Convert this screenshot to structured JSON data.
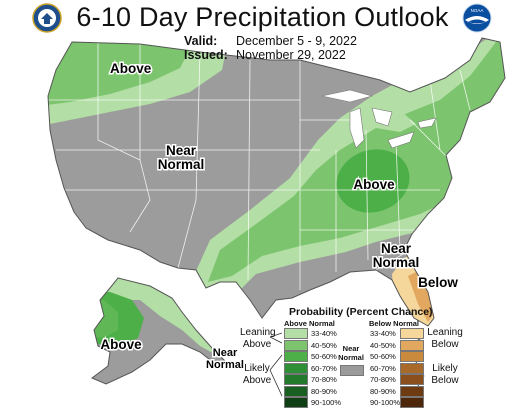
{
  "header": {
    "title": "6-10 Day Precipitation Outlook",
    "valid_label": "Valid:",
    "valid_value": "December 5 - 9, 2022",
    "issued_label": "Issued:",
    "issued_value": "November 29, 2022"
  },
  "logos": [
    {
      "name": "commerce-seal-icon"
    },
    {
      "name": "noaa-logo-icon",
      "text": "NOAA"
    }
  ],
  "map_labels": {
    "above_nw": "Above",
    "near_normal_w_1": "Near",
    "near_normal_w_2": "Normal",
    "above_ohio": "Above",
    "near_normal_se_1": "Near",
    "near_normal_se_2": "Normal",
    "below_fl": "Below",
    "above_ak": "Above",
    "near_normal_ak_1": "Near",
    "near_normal_ak_2": "Normal"
  },
  "legend": {
    "title": "Probability (Percent Chance)",
    "above_header": "Above Normal",
    "below_header": "Below Normal",
    "near_header_1": "Near",
    "near_header_2": "Normal",
    "leaning_above_1": "Leaning",
    "leaning_above_2": "Above",
    "likely_above_1": "Likely",
    "likely_above_2": "Above",
    "leaning_below_1": "Leaning",
    "leaning_below_2": "Below",
    "likely_below_1": "Likely",
    "likely_below_2": "Below",
    "above_ranges": [
      "33-40%",
      "40-50%",
      "50-60%",
      "60-70%",
      "70-80%",
      "80-90%",
      "90-100%"
    ],
    "below_ranges": [
      "33-40%",
      "40-50%",
      "50-60%",
      "60-70%",
      "70-80%",
      "80-90%",
      "90-100%"
    ],
    "above_colors": [
      "#b3dea5",
      "#7cc46e",
      "#4caf47",
      "#2f8f36",
      "#247a2c",
      "#1a5f22",
      "#0f3f14"
    ],
    "below_colors": [
      "#f5d79c",
      "#e3a860",
      "#c98a3e",
      "#a86a2a",
      "#8a4f1c",
      "#6e3a12",
      "#4e2609"
    ],
    "near_color": "#9a9a9a"
  },
  "colors": {
    "near_normal": "#9c9c9c",
    "leaning_above": "#b3dea5",
    "above_40_50": "#7cc46e",
    "above_50_60": "#4caf47",
    "below_33_40": "#f5d79c",
    "below_40_50": "#e3a860"
  }
}
